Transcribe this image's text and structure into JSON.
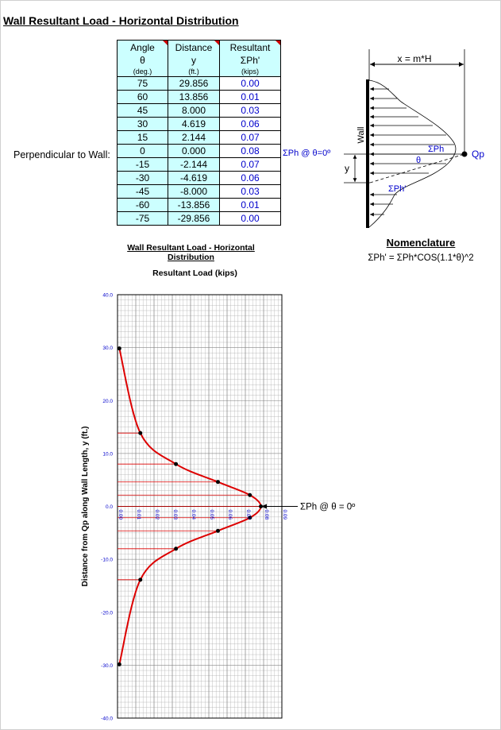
{
  "title": "Wall Resultant Load - Horizontal Distribution",
  "table": {
    "headers": [
      {
        "l1": "Angle",
        "l2": "θ",
        "l3": "(deg.)"
      },
      {
        "l1": "Distance",
        "l2": "y",
        "l3": "(ft.)"
      },
      {
        "l1": "Resultant",
        "l2": "ΣPh'",
        "l3": "(kips)"
      }
    ],
    "rows": [
      [
        "75",
        "29.856",
        "0.00"
      ],
      [
        "60",
        "13.856",
        "0.01"
      ],
      [
        "45",
        "8.000",
        "0.03"
      ],
      [
        "30",
        "4.619",
        "0.06"
      ],
      [
        "15",
        "2.144",
        "0.07"
      ],
      [
        "0",
        "0.000",
        "0.08"
      ],
      [
        "-15",
        "-2.144",
        "0.07"
      ],
      [
        "-30",
        "-4.619",
        "0.06"
      ],
      [
        "-45",
        "-8.000",
        "0.03"
      ],
      [
        "-60",
        "-13.856",
        "0.01"
      ],
      [
        "-75",
        "-29.856",
        "0.00"
      ]
    ]
  },
  "perpendicular_label": "Perpendicular to Wall:",
  "sum_label": "ΣPh @ θ=0º",
  "diagram": {
    "x_label": "x = m*H",
    "wall_label": "Wall",
    "sum_ph": "ΣPh",
    "theta": "θ",
    "qp": "Qp",
    "y": "y",
    "sum_ph_prime": "ΣPh'"
  },
  "nomenclature": {
    "title": "Nomenclature",
    "formula": "ΣPh' = ΣPh*COS(1.1*θ)^2"
  },
  "chart_data": {
    "type": "line",
    "title": "Wall Resultant Load - Horizontal Distribution",
    "subtitle": "Resultant Load (kips)",
    "ylabel": "Distance from Qp along Wall Length, y (ft.)",
    "xlim": [
      0,
      0.09
    ],
    "ylim": [
      -40,
      40
    ],
    "x_ticks": [
      "0.00",
      "0.01",
      "0.02",
      "0.03",
      "0.04",
      "0.05",
      "0.06",
      "0.07",
      "0.08",
      "0.09"
    ],
    "y_ticks": [
      "40.0",
      "30.0",
      "20.0",
      "10.0",
      "0.0",
      "-10.0",
      "-20.0",
      "-30.0",
      "-40.0"
    ],
    "annotation": "ΣPh @ θ = 0º",
    "points": [
      {
        "x": 0.001,
        "y": 29.856
      },
      {
        "x": 0.0125,
        "y": 13.856
      },
      {
        "x": 0.032,
        "y": 8.0
      },
      {
        "x": 0.055,
        "y": 4.619
      },
      {
        "x": 0.0725,
        "y": 2.144
      },
      {
        "x": 0.0785,
        "y": 0.0
      },
      {
        "x": 0.0725,
        "y": -2.144
      },
      {
        "x": 0.055,
        "y": -4.619
      },
      {
        "x": 0.032,
        "y": -8.0
      },
      {
        "x": 0.0125,
        "y": -13.856
      },
      {
        "x": 0.001,
        "y": -29.856
      }
    ],
    "colors": {
      "curve": "#dd0000",
      "points": "#000000",
      "grid": "#b0b0b0",
      "ticks": "#0000cc"
    }
  }
}
